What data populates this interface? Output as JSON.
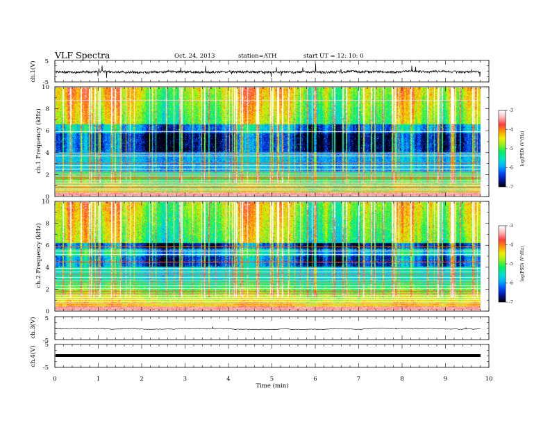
{
  "header": {
    "title": "VLF  Spectra",
    "date": "Oct. 24, 2013",
    "station": "station=ATH",
    "start": "start  UT  =   12: 10: 0"
  },
  "chart_data": [
    {
      "type": "line",
      "panel": "ch1-waveform",
      "ylabel": "ch.1(V)",
      "ylim": [
        -5,
        5
      ],
      "yticks": [
        "5",
        "-5"
      ],
      "xlim": [
        0,
        10
      ],
      "approx_baseline": 0,
      "spikes_visible": true
    },
    {
      "type": "heatmap",
      "panel": "ch1-spectrogram",
      "ylabel": "ch.1  Frequency  (kHz)",
      "ylim": [
        0,
        10
      ],
      "yticks": [
        "0",
        "2",
        "4",
        "6",
        "8",
        "10"
      ],
      "xlim": [
        0,
        9.8
      ],
      "colorbar": {
        "label": "log(PSD) (V²/Hz)",
        "range": [
          -7,
          -3
        ],
        "ticks": [
          "-3",
          "-4",
          "-5",
          "-6",
          "-7"
        ]
      }
    },
    {
      "type": "heatmap",
      "panel": "ch2-spectrogram",
      "ylabel": "ch.2  Frequency  (kHz)",
      "ylim": [
        0,
        10
      ],
      "yticks": [
        "0",
        "2",
        "4",
        "6",
        "8",
        "10"
      ],
      "xlim": [
        0,
        9.8
      ],
      "colorbar": {
        "label": "log(PSD) (V²/Hz)",
        "range": [
          -7,
          -3
        ],
        "ticks": [
          "-3",
          "-4",
          "-5",
          "-6",
          "-7"
        ]
      }
    },
    {
      "type": "line",
      "panel": "ch3-waveform",
      "ylabel": "ch.3(V)",
      "ylim": [
        -5,
        5
      ],
      "yticks": [
        "5",
        "-5"
      ],
      "approx_baseline": 0
    },
    {
      "type": "line",
      "panel": "ch4-waveform",
      "ylabel": "ch.4(V)",
      "ylim": [
        -5,
        5
      ],
      "yticks": [
        "5",
        "-5"
      ],
      "approx_baseline": 0
    }
  ],
  "xaxis": {
    "label": "Time  (min)",
    "ticks": [
      "0",
      "1",
      "2",
      "3",
      "4",
      "5",
      "6",
      "7",
      "8",
      "9",
      "10"
    ],
    "range": [
      0,
      10
    ]
  },
  "colormap": [
    "#000010",
    "#0018a0",
    "#0050ff",
    "#00b4ff",
    "#00e6c8",
    "#00f060",
    "#8cf020",
    "#f0f000",
    "#ff9600",
    "#ff3c3c",
    "#ffb4b4",
    "#ffffff"
  ]
}
